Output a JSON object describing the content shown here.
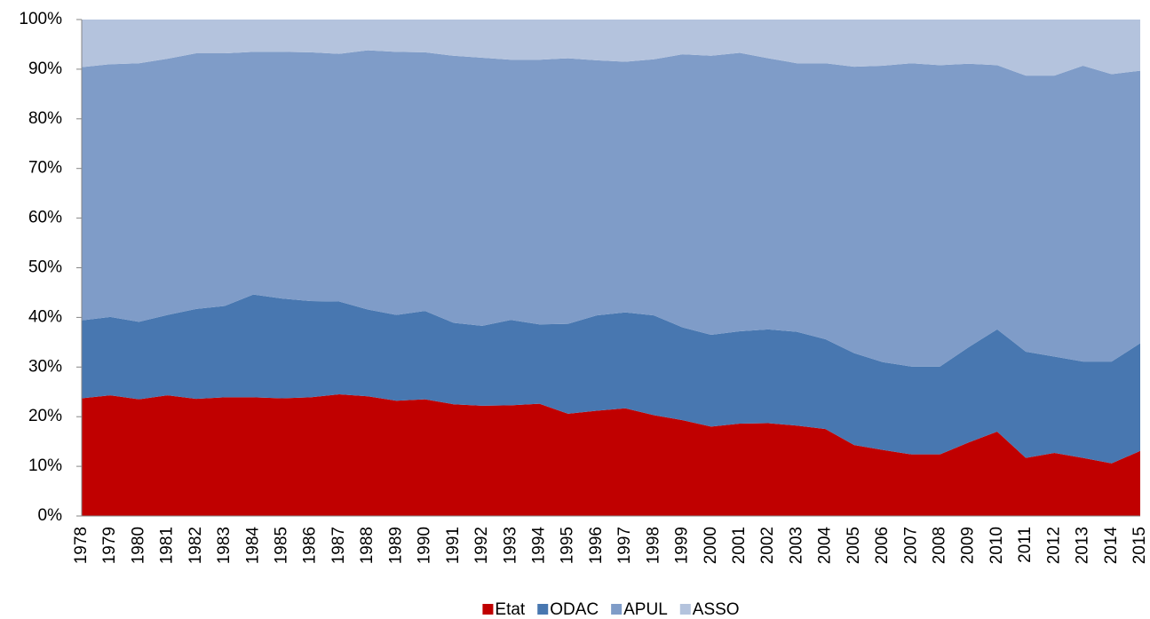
{
  "chart_data": {
    "type": "stacked_area",
    "categories": [
      "1978",
      "1979",
      "1980",
      "1981",
      "1982",
      "1983",
      "1984",
      "1985",
      "1986",
      "1987",
      "1988",
      "1989",
      "1990",
      "1991",
      "1992",
      "1993",
      "1994",
      "1995",
      "1996",
      "1997",
      "1998",
      "1999",
      "2000",
      "2001",
      "2002",
      "2003",
      "2004",
      "2005",
      "2006",
      "2007",
      "2008",
      "2009",
      "2010",
      "2011",
      "2012",
      "2013",
      "2014",
      "2015"
    ],
    "series": [
      {
        "name": "Etat",
        "color": "#c00000",
        "values": [
          23.7,
          24.3,
          23.5,
          24.3,
          23.6,
          23.9,
          23.9,
          23.7,
          23.9,
          24.5,
          24.1,
          23.2,
          23.5,
          22.5,
          22.2,
          22.3,
          22.6,
          20.6,
          21.2,
          21.7,
          20.3,
          19.3,
          18.0,
          18.6,
          18.7,
          18.2,
          17.5,
          14.3,
          13.3,
          12.4,
          12.4,
          14.8,
          17.0,
          11.7,
          12.7,
          11.7,
          10.6,
          13.1
        ]
      },
      {
        "name": "ODAC",
        "color": "#4877b0",
        "values": [
          15.7,
          15.8,
          15.6,
          16.2,
          18.1,
          18.4,
          20.7,
          20.1,
          19.4,
          18.7,
          17.5,
          17.3,
          17.8,
          16.4,
          16.1,
          17.2,
          16.0,
          18.1,
          19.2,
          19.3,
          20.1,
          18.7,
          18.5,
          18.6,
          18.9,
          18.9,
          18.1,
          18.5,
          17.7,
          17.7,
          17.7,
          19.2,
          20.6,
          21.4,
          19.4,
          19.4,
          20.5,
          21.7
        ]
      },
      {
        "name": "APUL",
        "color": "#7f9cc8",
        "values": [
          51.0,
          50.9,
          52.1,
          51.6,
          51.5,
          50.9,
          48.9,
          49.7,
          50.1,
          49.9,
          52.2,
          53.0,
          52.1,
          53.8,
          54.0,
          52.4,
          53.3,
          53.5,
          51.4,
          50.5,
          51.6,
          55.0,
          56.2,
          56.1,
          54.6,
          54.1,
          55.6,
          57.7,
          59.7,
          61.1,
          60.7,
          57.1,
          53.2,
          55.6,
          56.6,
          59.6,
          57.9,
          54.9
        ]
      },
      {
        "name": "ASSO",
        "color": "#b4c3dd",
        "values": [
          9.6,
          9.0,
          8.8,
          7.9,
          6.8,
          6.8,
          6.5,
          6.5,
          6.6,
          6.9,
          6.2,
          6.5,
          6.6,
          7.3,
          7.7,
          8.1,
          8.1,
          7.8,
          8.2,
          8.5,
          8.0,
          7.0,
          7.3,
          6.7,
          7.8,
          8.8,
          8.8,
          9.5,
          9.3,
          8.8,
          9.2,
          8.9,
          9.2,
          11.3,
          11.3,
          9.3,
          11.0,
          10.3
        ]
      }
    ],
    "ylim": [
      0,
      100
    ],
    "yticks": [
      {
        "value": 0,
        "label": "0%"
      },
      {
        "value": 10,
        "label": "10%"
      },
      {
        "value": 20,
        "label": "20%"
      },
      {
        "value": 30,
        "label": "30%"
      },
      {
        "value": 40,
        "label": "40%"
      },
      {
        "value": 50,
        "label": "50%"
      },
      {
        "value": 60,
        "label": "60%"
      },
      {
        "value": 70,
        "label": "70%"
      },
      {
        "value": 80,
        "label": "80%"
      },
      {
        "value": 90,
        "label": "90%"
      },
      {
        "value": 100,
        "label": "100%"
      }
    ],
    "grid": false,
    "legend": "bottom"
  }
}
